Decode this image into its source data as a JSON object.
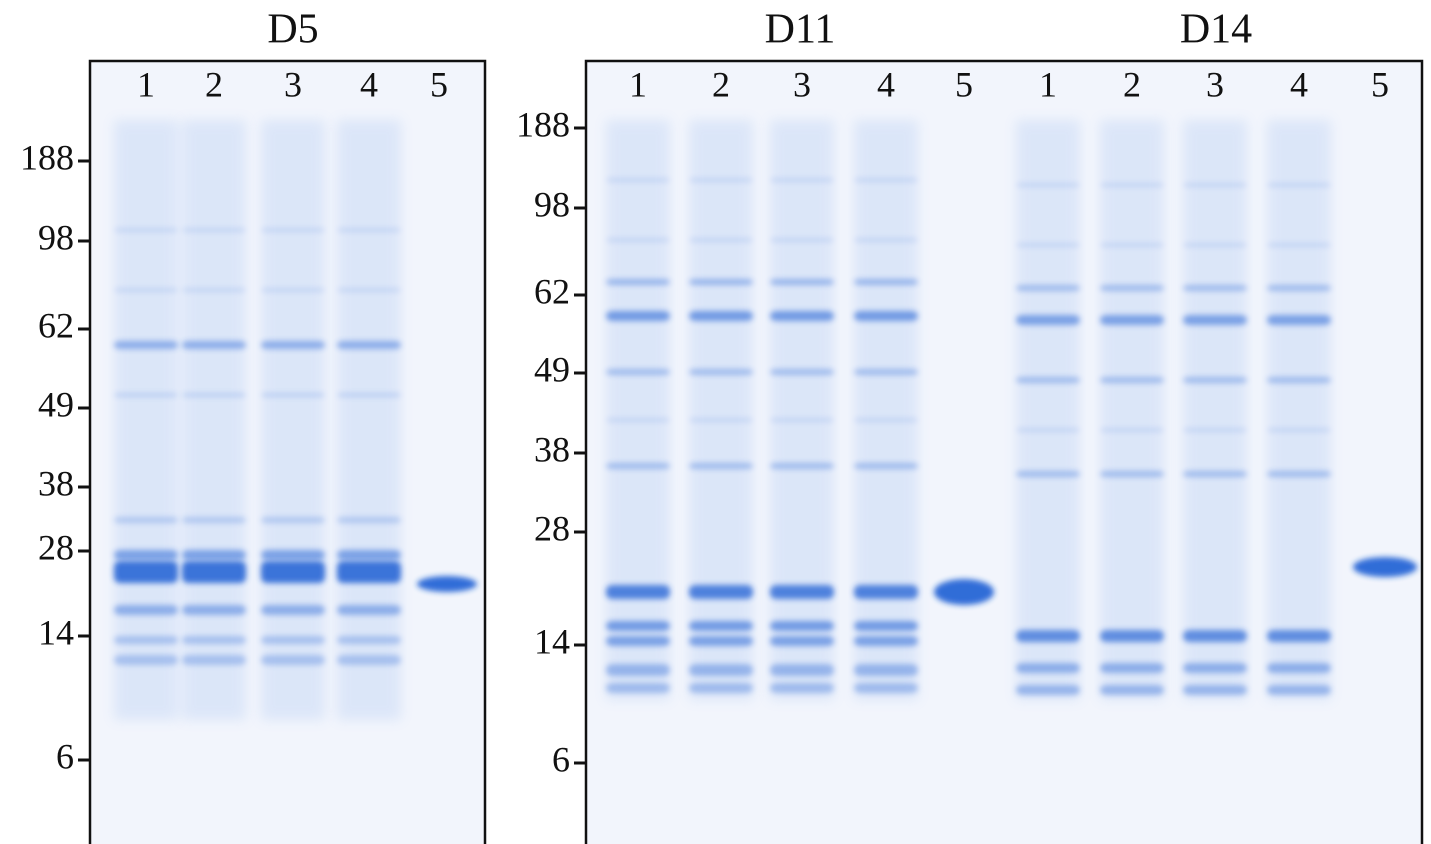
{
  "gels": [
    {
      "titles": [
        "D5"
      ],
      "lanes": [
        "1",
        "2",
        "3",
        "4",
        "5"
      ],
      "markers": [
        "188",
        "98",
        "62",
        "49",
        "38",
        "28",
        "14",
        "6"
      ]
    },
    {
      "titles": [
        "D11",
        "D14"
      ],
      "lanes": [
        "1",
        "2",
        "3",
        "4",
        "5",
        "1",
        "2",
        "3",
        "4",
        "5"
      ],
      "markers": [
        "188",
        "98",
        "62",
        "49",
        "38",
        "28",
        "14",
        "6"
      ]
    }
  ]
}
